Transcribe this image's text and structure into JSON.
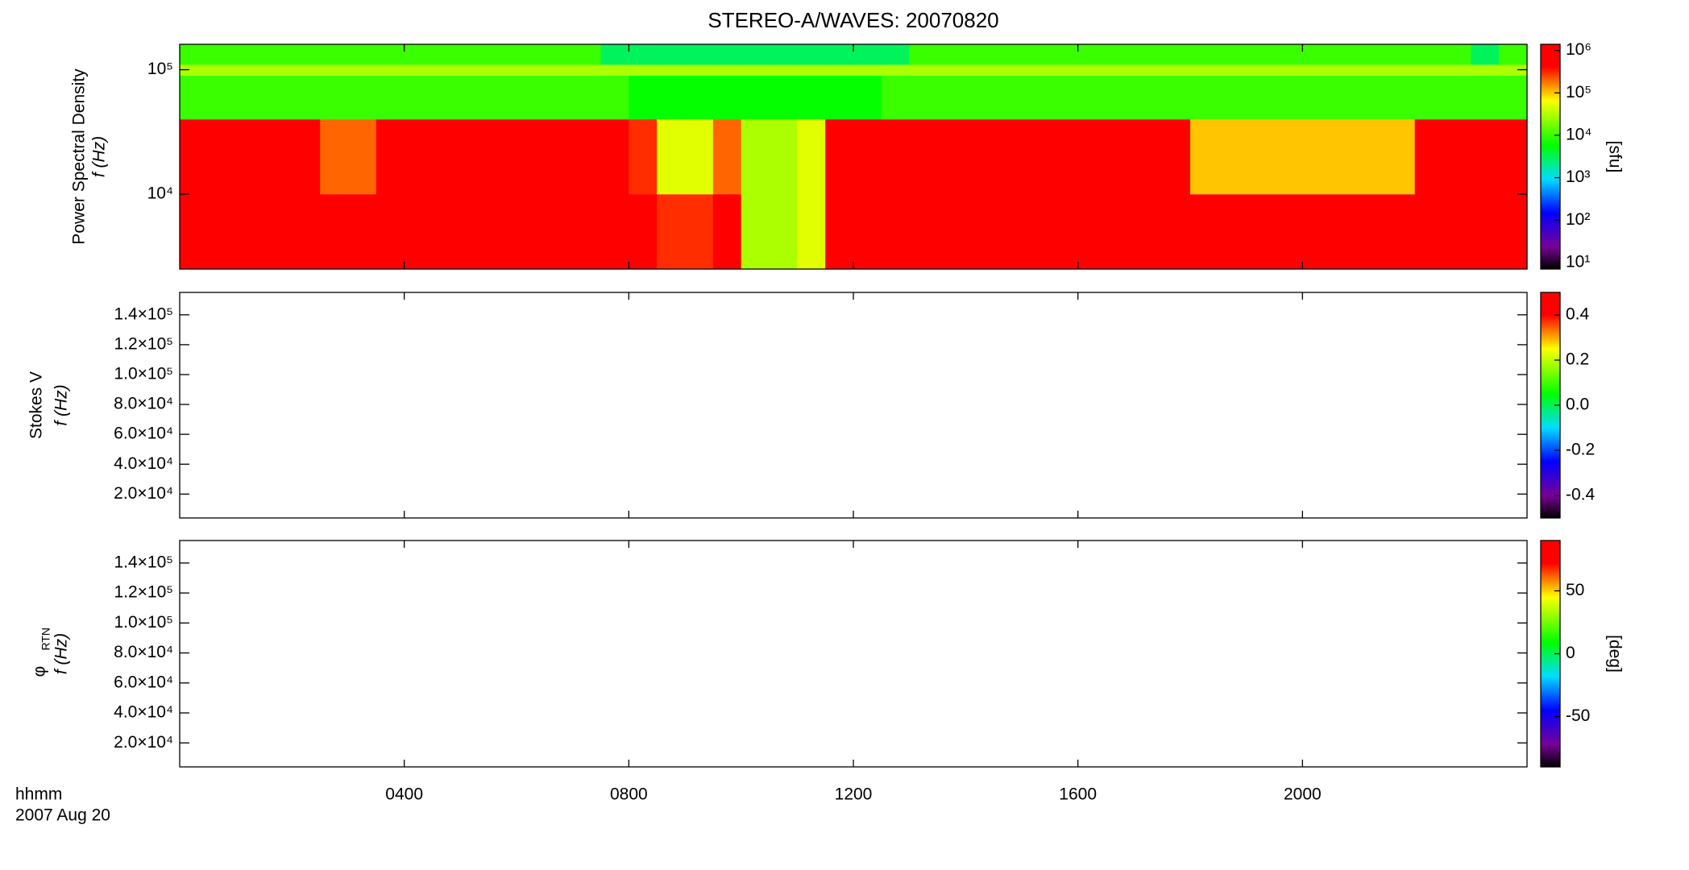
{
  "title": "STEREO-A/WAVES: 20070820",
  "x_axis": {
    "label": "hhmm",
    "date": "2007 Aug 20"
  },
  "chart_data": [
    {
      "type": "heatmap",
      "ylabel": "Power Spectral Density",
      "ylabel2": "f (Hz)",
      "ylog": true,
      "xlim": [
        0,
        24
      ],
      "xticks": [
        4,
        8,
        12,
        16,
        20
      ],
      "ylim": [
        2500,
        160000
      ],
      "yticks": [
        {
          "value": 10000,
          "label": "10⁴"
        },
        {
          "value": 100000,
          "label": "10⁵"
        }
      ],
      "x_bins": [
        0,
        0.5,
        1,
        1.5,
        2,
        2.5,
        3,
        3.5,
        4,
        4.5,
        5,
        5.5,
        6,
        6.5,
        7,
        7.5,
        8,
        8.5,
        9,
        9.5,
        10,
        10.5,
        11,
        11.5,
        12,
        12.5,
        13,
        13.5,
        14,
        14.5,
        15,
        15.5,
        16,
        16.5,
        17,
        17.5,
        18,
        18.5,
        19,
        19.5,
        20,
        20.5,
        21,
        21.5,
        22,
        22.5,
        23,
        23.5,
        24
      ],
      "y_bins": [
        2500,
        10000,
        40000,
        90000,
        110000,
        160000
      ],
      "values": [
        [
          1000000,
          1000000,
          1000000,
          1000000,
          1000000,
          1000000,
          1000000,
          1000000,
          1000000,
          1000000,
          1000000,
          1000000,
          1000000,
          1000000,
          1000000,
          1000000,
          1000000,
          300000,
          300000,
          1000000,
          30000,
          30000,
          50000,
          1000000,
          1000000,
          1000000,
          1000000,
          1000000,
          1000000,
          1000000,
          1000000,
          1000000,
          1000000,
          1000000,
          1000000,
          1000000,
          1000000,
          1000000,
          1000000,
          1000000,
          1000000,
          1000000,
          1000000,
          1000000,
          1000000,
          1000000,
          1000000,
          1000000
        ],
        [
          1000000,
          1000000,
          1000000,
          1000000,
          1000000,
          200000,
          200000,
          1000000,
          500000,
          500000,
          1000000,
          1000000,
          1000000,
          1000000,
          1000000,
          500000,
          300000,
          50000,
          50000,
          200000,
          30000,
          30000,
          50000,
          1000000,
          500000,
          500000,
          1000000,
          1000000,
          1000000,
          1000000,
          1000000,
          1000000,
          1000000,
          1000000,
          1000000,
          1000000,
          100000,
          100000,
          100000,
          100000,
          100000,
          100000,
          100000,
          100000,
          500000,
          500000,
          500000,
          500000
        ],
        [
          10000,
          10000,
          10000,
          10000,
          10000,
          10000,
          10000,
          10000,
          10000,
          10000,
          10000,
          10000,
          10000,
          10000,
          10000,
          10000,
          6000,
          6000,
          6000,
          6000,
          6000,
          6000,
          6000,
          6000,
          6000,
          10000,
          10000,
          10000,
          10000,
          10000,
          10000,
          10000,
          10000,
          10000,
          10000,
          10000,
          10000,
          10000,
          10000,
          10000,
          10000,
          10000,
          10000,
          10000,
          10000,
          10000,
          10000,
          10000
        ],
        [
          30000,
          30000,
          30000,
          30000,
          30000,
          30000,
          30000,
          30000,
          30000,
          30000,
          30000,
          30000,
          30000,
          30000,
          30000,
          30000,
          30000,
          30000,
          30000,
          30000,
          30000,
          30000,
          30000,
          30000,
          30000,
          30000,
          30000,
          30000,
          30000,
          30000,
          30000,
          30000,
          30000,
          30000,
          30000,
          30000,
          30000,
          30000,
          30000,
          30000,
          30000,
          30000,
          30000,
          30000,
          30000,
          30000,
          30000,
          30000
        ],
        [
          10000,
          10000,
          10000,
          10000,
          10000,
          10000,
          10000,
          10000,
          10000,
          10000,
          10000,
          10000,
          10000,
          10000,
          10000,
          3000,
          3000,
          3000,
          3000,
          3000,
          3000,
          3000,
          3000,
          3000,
          3000,
          3000,
          10000,
          10000,
          10000,
          10000,
          10000,
          10000,
          10000,
          10000,
          10000,
          10000,
          10000,
          10000,
          10000,
          10000,
          10000,
          10000,
          10000,
          10000,
          10000,
          10000,
          3000,
          10000
        ]
      ],
      "colorbar": {
        "log": true,
        "lim": [
          7,
          1400000
        ],
        "label": "[sfu]",
        "ticks": [
          {
            "value": 10,
            "label": "10¹"
          },
          {
            "value": 100,
            "label": "10²"
          },
          {
            "value": 1000,
            "label": "10³"
          },
          {
            "value": 10000,
            "label": "10⁴"
          },
          {
            "value": 100000,
            "label": "10⁵"
          },
          {
            "value": 1000000,
            "label": "10⁶"
          }
        ]
      }
    },
    {
      "type": "heatmap",
      "ylabel": "Stokes V",
      "ylabel2": "f (Hz)",
      "ylog": false,
      "xlim": [
        0,
        24
      ],
      "xticks": [
        4,
        8,
        12,
        16,
        20
      ],
      "ylim": [
        4000,
        155000
      ],
      "yticks": [
        {
          "value": 20000,
          "label": "2.0×10⁴"
        },
        {
          "value": 40000,
          "label": "4.0×10⁴"
        },
        {
          "value": 60000,
          "label": "6.0×10⁴"
        },
        {
          "value": 80000,
          "label": "8.0×10⁴"
        },
        {
          "value": 100000,
          "label": "1.0×10⁵"
        },
        {
          "value": 120000,
          "label": "1.2×10⁵"
        },
        {
          "value": 140000,
          "label": "1.4×10⁵"
        }
      ],
      "colorbar": {
        "log": false,
        "lim": [
          -0.5,
          0.5
        ],
        "ticks": [
          -0.4,
          -0.2,
          {
            "value": 0,
            "label": "0.0"
          },
          0.2,
          0.4
        ]
      }
    },
    {
      "type": "heatmap",
      "ylabel": "φ",
      "ylabel_sub": "RTN",
      "ylabel2": "f (Hz)",
      "ylog": false,
      "xlim": [
        0,
        24
      ],
      "xticks": [
        {
          "value": 4,
          "label": "0400"
        },
        {
          "value": 8,
          "label": "0800"
        },
        {
          "value": 12,
          "label": "1200"
        },
        {
          "value": 16,
          "label": "1600"
        },
        {
          "value": 20,
          "label": "2000"
        }
      ],
      "ylim": [
        4000,
        155000
      ],
      "yticks": [
        {
          "value": 20000,
          "label": "2.0×10⁴"
        },
        {
          "value": 40000,
          "label": "4.0×10⁴"
        },
        {
          "value": 60000,
          "label": "6.0×10⁴"
        },
        {
          "value": 80000,
          "label": "8.0×10⁴"
        },
        {
          "value": 100000,
          "label": "1.0×10⁵"
        },
        {
          "value": 120000,
          "label": "1.2×10⁵"
        },
        {
          "value": 140000,
          "label": "1.4×10⁵"
        }
      ],
      "colorbar": {
        "log": false,
        "lim": [
          -90,
          90
        ],
        "label": "[deg]",
        "ticks": [
          -50,
          0,
          50
        ]
      }
    }
  ]
}
